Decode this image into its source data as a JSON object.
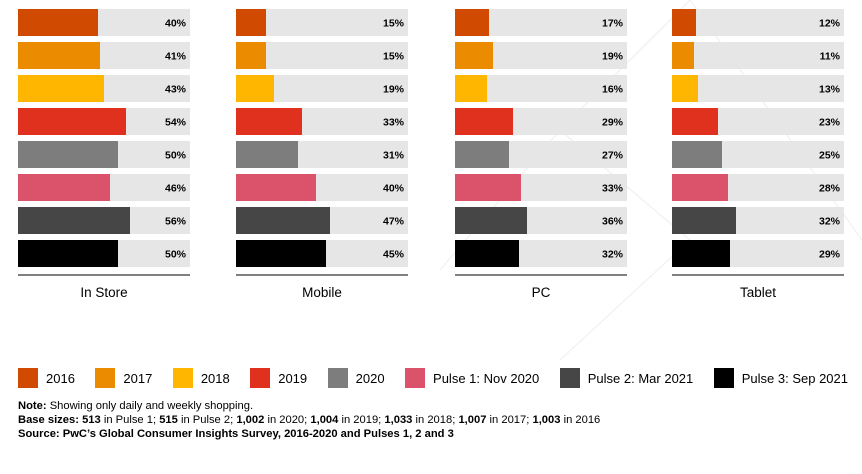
{
  "chart_data": {
    "type": "bar",
    "orientation": "horizontal",
    "xlim": [
      0,
      100
    ],
    "value_suffix": "%",
    "series_names": [
      "2016",
      "2017",
      "2018",
      "2019",
      "2020",
      "Pulse 1: Nov 2020",
      "Pulse 2: Mar 2021",
      "Pulse 3: Sep 2021"
    ],
    "colors": [
      "#d04a02",
      "#eb8c00",
      "#ffb600",
      "#e0301e",
      "#7d7d7d",
      "#db536a",
      "#464646",
      "#000000"
    ],
    "panels": [
      {
        "label": "In Store",
        "values": [
          40,
          41,
          43,
          54,
          50,
          46,
          56,
          50
        ]
      },
      {
        "label": "Mobile",
        "values": [
          15,
          15,
          19,
          33,
          31,
          40,
          47,
          45
        ]
      },
      {
        "label": "PC",
        "values": [
          17,
          19,
          16,
          29,
          27,
          33,
          36,
          32
        ]
      },
      {
        "label": "Tablet",
        "values": [
          12,
          11,
          13,
          23,
          25,
          28,
          32,
          29
        ]
      }
    ]
  },
  "notes": {
    "note_label": "Note:",
    "note_text": " Showing only daily and weekly shopping.",
    "base_label": "Base sizes:",
    "base_parts": [
      {
        "bold": "513",
        "text": " in Pulse 1; "
      },
      {
        "bold": "515",
        "text": " in Pulse 2; "
      },
      {
        "bold": "1,002",
        "text": " in 2020; "
      },
      {
        "bold": "1,004",
        "text": " in 2019; "
      },
      {
        "bold": "1,033",
        "text": " in 2018; "
      },
      {
        "bold": "1,007",
        "text": " in 2017; "
      },
      {
        "bold": "1,003",
        "text": " in 2016"
      }
    ],
    "source_text": "Source: PwC’s Global Consumer Insights Survey, 2016-2020 and Pulses 1, 2 and 3"
  }
}
